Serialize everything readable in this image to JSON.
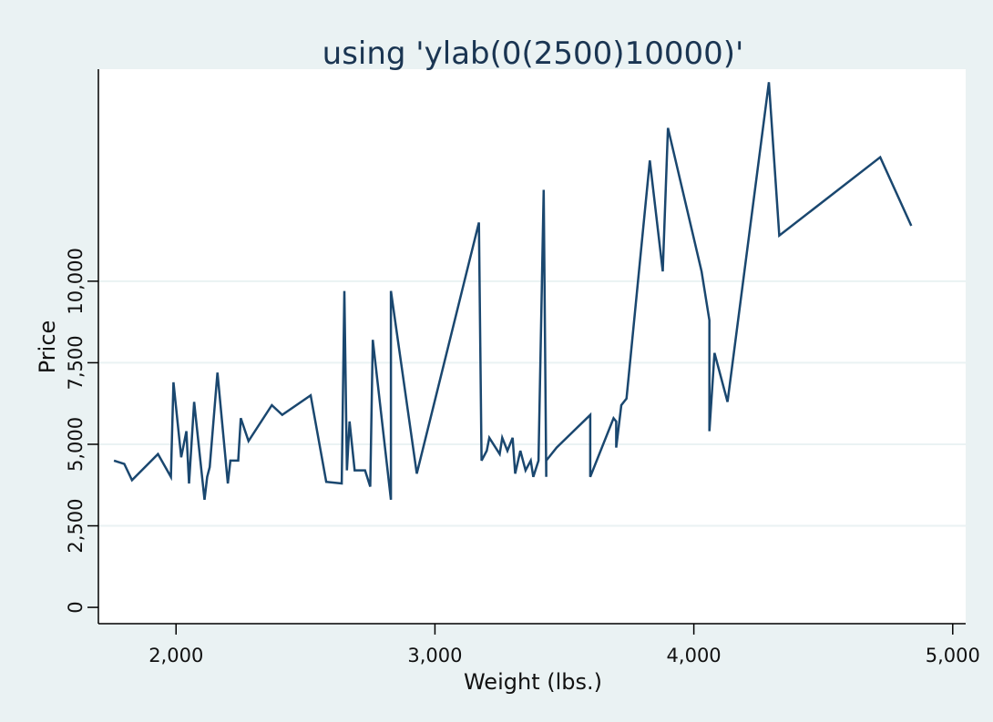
{
  "chart_data": {
    "type": "line",
    "title": "using 'ylab(0(2500)10000)'",
    "xlabel": "Weight (lbs.)",
    "ylabel": "Price",
    "xlim": [
      1700,
      5050
    ],
    "ylim": [
      -500,
      16500
    ],
    "xticks": [
      2000,
      3000,
      4000,
      5000
    ],
    "xtick_labels": [
      "2,000",
      "3,000",
      "4,000",
      "5,000"
    ],
    "yticks": [
      0,
      2500,
      5000,
      7500,
      10000
    ],
    "ytick_labels": [
      "0",
      "2,500",
      "5,000",
      "7,500",
      "10,000"
    ],
    "grid": true,
    "legend": "none",
    "line_color": "#1a476f",
    "background_color": "#eaf2f3",
    "plot_color": "#ffffff",
    "grid_color": "#eaf2f3",
    "series": [
      {
        "x": [
          1760,
          1800,
          1830,
          1930,
          1980,
          1990,
          2020,
          2040,
          2050,
          2070,
          2110,
          2120,
          2130,
          2160,
          2200,
          2210,
          2240,
          2250,
          2280,
          2370,
          2410,
          2520,
          2580,
          2640,
          2650,
          2660,
          2670,
          2690,
          2730,
          2750,
          2760,
          2830,
          2830,
          2930,
          3170,
          3180,
          3200,
          3210,
          3250,
          3260,
          3280,
          3300,
          3310,
          3330,
          3350,
          3370,
          3380,
          3400,
          3420,
          3430,
          3430,
          3470,
          3600,
          3600,
          3690,
          3700,
          3700,
          3720,
          3740,
          3830,
          3880,
          3900,
          4030,
          4060,
          4060,
          4080,
          4130,
          4290,
          4330,
          4720,
          4840
        ],
        "y": [
          4500,
          4400,
          3900,
          4700,
          4000,
          6900,
          4600,
          5400,
          3800,
          6300,
          3300,
          4000,
          4300,
          7200,
          3800,
          4500,
          4500,
          5800,
          5100,
          6200,
          5900,
          6500,
          3850,
          3800,
          9700,
          4200,
          5700,
          4200,
          4200,
          3700,
          8200,
          3300,
          9700,
          4100,
          11800,
          4500,
          4800,
          5200,
          4700,
          5200,
          4800,
          5200,
          4100,
          4800,
          4200,
          4500,
          4000,
          4500,
          12800,
          4000,
          4500,
          4900,
          5900,
          4000,
          5800,
          5700,
          4900,
          6200,
          6400,
          13700,
          10300,
          14700,
          10300,
          8800,
          5400,
          7800,
          6300,
          16100,
          11400,
          13800,
          11700
        ]
      }
    ]
  }
}
